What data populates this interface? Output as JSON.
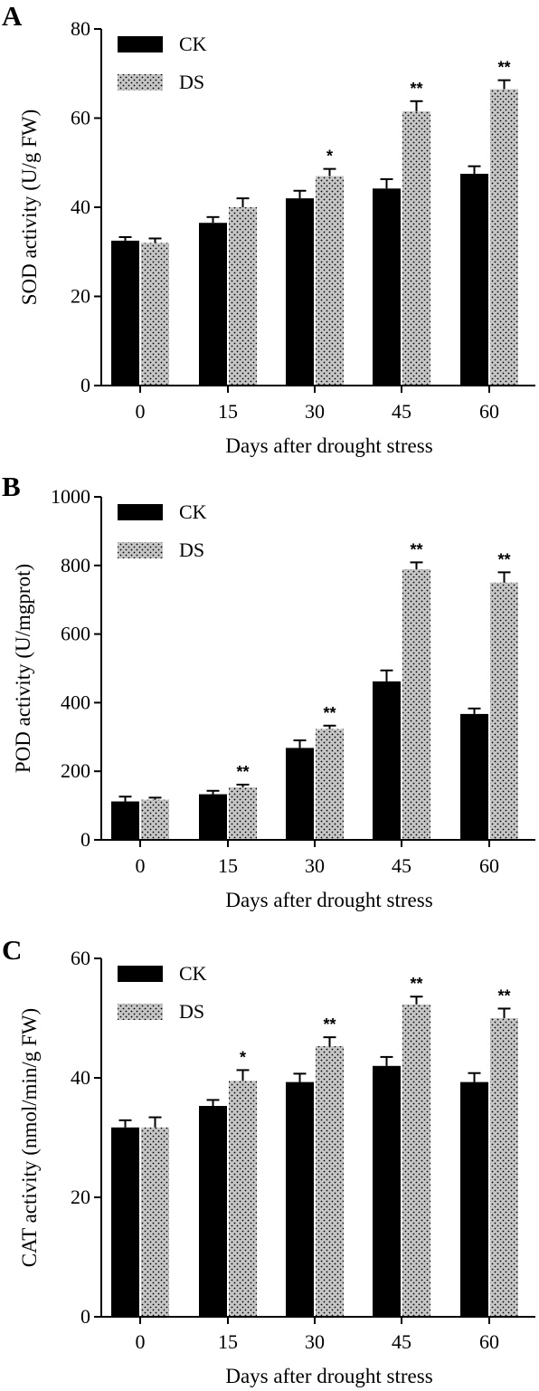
{
  "colors": {
    "CK": "#000000",
    "DS_fill": "#c6c6c6",
    "DS_dot": "#000000",
    "axis": "#000000"
  },
  "chart_data": [
    {
      "panel": "A",
      "type": "bar",
      "categories": [
        "0",
        "15",
        "30",
        "45",
        "60"
      ],
      "series": [
        {
          "name": "CK",
          "values": [
            32.5,
            36.5,
            42,
            44.2,
            47.5
          ],
          "errors": [
            0.8,
            1.3,
            1.7,
            2.1,
            1.7
          ]
        },
        {
          "name": "DS",
          "values": [
            32,
            40,
            47,
            61.5,
            66.5
          ],
          "errors": [
            1.0,
            2.0,
            1.6,
            2.3,
            2.0
          ]
        }
      ],
      "significance": [
        "",
        "",
        "*",
        "**",
        "**"
      ],
      "xlabel": "Days after drought stress",
      "ylabel": "SOD activity (U/g FW)",
      "ylim": [
        0,
        80
      ],
      "yticks": [
        "0",
        "20",
        "40",
        "60",
        "80"
      ],
      "legend": "top-left",
      "grid": false
    },
    {
      "panel": "B",
      "type": "bar",
      "categories": [
        "0",
        "15",
        "30",
        "45",
        "60"
      ],
      "series": [
        {
          "name": "CK",
          "values": [
            112,
            133,
            268,
            462,
            367
          ],
          "errors": [
            14,
            10,
            22,
            32,
            16
          ]
        },
        {
          "name": "DS",
          "values": [
            117,
            153,
            323,
            789,
            750
          ],
          "errors": [
            6,
            8,
            10,
            20,
            30
          ]
        }
      ],
      "significance": [
        "",
        "**",
        "**",
        "**",
        "**"
      ],
      "xlabel": "Days after drought stress",
      "ylabel": "POD activity (U/mgprot)",
      "ylim": [
        0,
        1000
      ],
      "yticks": [
        "0",
        "200",
        "400",
        "600",
        "800",
        "1000"
      ],
      "legend": "top-left",
      "grid": false
    },
    {
      "panel": "C",
      "type": "bar",
      "categories": [
        "0",
        "15",
        "30",
        "45",
        "60"
      ],
      "series": [
        {
          "name": "CK",
          "values": [
            31.7,
            35.3,
            39.3,
            42,
            39.3
          ],
          "errors": [
            1.2,
            1.0,
            1.4,
            1.5,
            1.5
          ]
        },
        {
          "name": "DS",
          "values": [
            31.7,
            39.5,
            45.3,
            52.3,
            50
          ],
          "errors": [
            1.7,
            1.8,
            1.5,
            1.3,
            1.6
          ]
        }
      ],
      "significance": [
        "",
        "*",
        "**",
        "**",
        "**"
      ],
      "xlabel": "Days after drought stress",
      "ylabel": "CAT activity (nmol/min/g FW)",
      "ylim": [
        0,
        60
      ],
      "yticks": [
        "0",
        "20",
        "40",
        "60"
      ],
      "legend": "top-left",
      "grid": false
    }
  ]
}
